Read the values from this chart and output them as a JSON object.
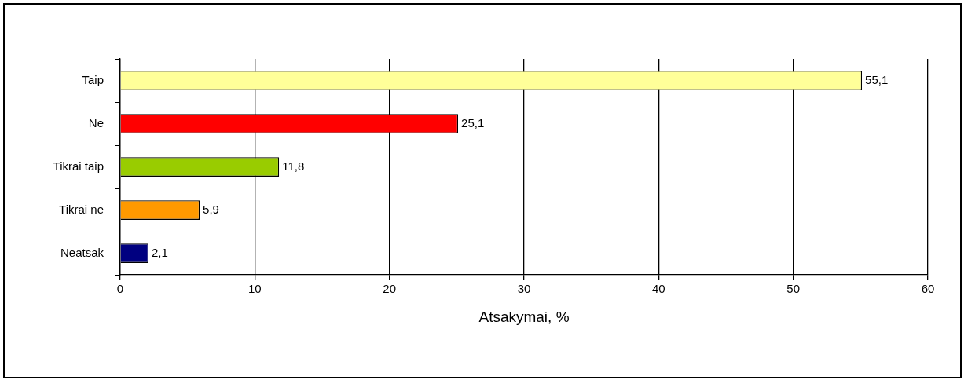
{
  "chart_data": {
    "type": "bar",
    "orientation": "horizontal",
    "xlabel": "Atsakymai, %",
    "categories": [
      "Taip",
      "Ne",
      "Tikrai taip",
      "Tikrai ne",
      "Neatsak"
    ],
    "values": [
      55.1,
      25.1,
      11.8,
      5.9,
      2.1
    ],
    "colors": [
      "#ffff99",
      "#ff0000",
      "#99cc00",
      "#ff9900",
      "#000080"
    ],
    "value_labels": [
      "55,1",
      "25,1",
      "11,8",
      "5,9",
      "2,1"
    ],
    "xlim": [
      0,
      60
    ],
    "xticks": [
      0,
      10,
      20,
      30,
      40,
      50,
      60
    ],
    "grid": "x",
    "legend": false
  }
}
